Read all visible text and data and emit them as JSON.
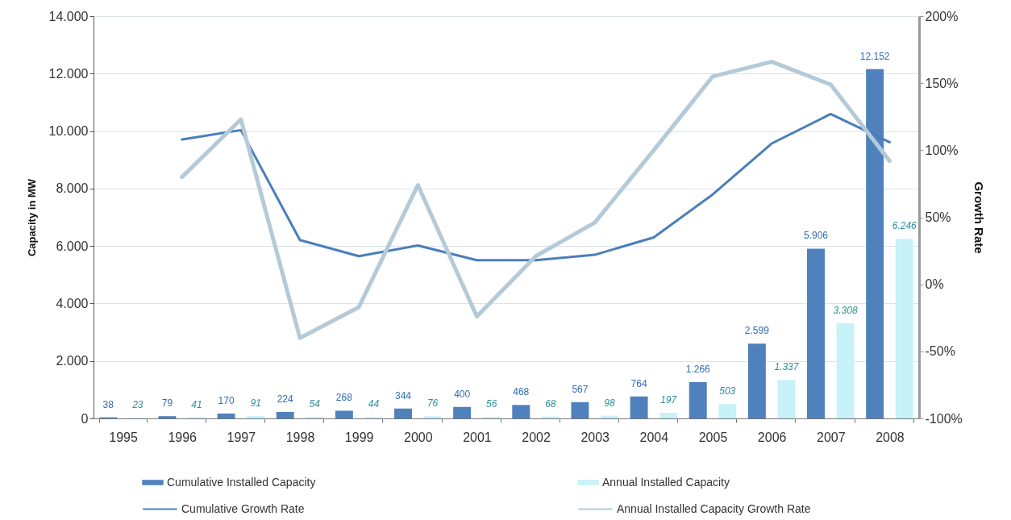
{
  "chart_data": {
    "type": "bar",
    "categories": [
      "1995",
      "1996",
      "1997",
      "1998",
      "1999",
      "2000",
      "2001",
      "2002",
      "2003",
      "2004",
      "2005",
      "2006",
      "2007",
      "2008"
    ],
    "ylabel": "Capacity in MW",
    "y2label": "Growth Rate",
    "ylim": [
      0,
      14000
    ],
    "yticks": [
      0,
      {
        "value": 2000,
        "label": "2.000"
      },
      {
        "value": 4000,
        "label": "4.000"
      },
      {
        "value": 6000,
        "label": "6.000"
      },
      {
        "value": 8000,
        "label": "8.000"
      },
      {
        "value": 10000,
        "label": "10.000"
      },
      {
        "value": 12000,
        "label": "12.000"
      },
      {
        "value": 14000,
        "label": "14.000"
      }
    ],
    "y2lim": [
      -100,
      200
    ],
    "y2ticks": [
      {
        "value": -100,
        "label": "-100%"
      },
      {
        "value": -50,
        "label": "-50%"
      },
      {
        "value": 0,
        "label": "0%"
      },
      {
        "value": 50,
        "label": "50%"
      },
      {
        "value": 100,
        "label": "100%"
      },
      {
        "value": 150,
        "label": "150%"
      },
      {
        "value": 200,
        "label": "200%"
      }
    ],
    "series": [
      {
        "name": "Cumulative Installed Capacity",
        "color": "#4f81bd",
        "values": [
          38,
          79,
          170,
          224,
          268,
          344,
          400,
          468,
          567,
          764,
          1266,
          2599,
          5906,
          12152
        ],
        "value_labels": [
          "38",
          "79",
          "170",
          "224",
          "268",
          "344",
          "400",
          "468",
          "567",
          "764",
          "1.266",
          "2.599",
          "5.906",
          "12.152"
        ]
      },
      {
        "name": "Annual Installed Capacity",
        "color": "#c6f2f8",
        "values": [
          23,
          41,
          91,
          54,
          44,
          76,
          56,
          68,
          98,
          197,
          503,
          1337,
          3308,
          6246
        ],
        "value_labels": [
          "23",
          "41",
          "91",
          "54",
          "44",
          "76",
          "56",
          "68",
          "98",
          "197",
          "503",
          "1.337",
          "3.308",
          "6.246"
        ]
      },
      {
        "name": "Cumulative Growth Rate",
        "type": "line",
        "axis": "y2",
        "color": "#4a7ebb",
        "values": [
          null,
          108,
          115,
          33,
          21,
          29,
          18,
          18,
          22,
          35,
          67,
          105,
          127,
          106
        ]
      },
      {
        "name": "Annual Installed Capacity Growth Rate",
        "type": "line",
        "axis": "y2",
        "color": "#b4cad8",
        "values": [
          null,
          80,
          123,
          -40,
          -17,
          74,
          -24,
          21,
          46,
          100,
          155,
          166,
          149,
          92
        ]
      }
    ],
    "grid": "y",
    "legend": "bottom"
  }
}
